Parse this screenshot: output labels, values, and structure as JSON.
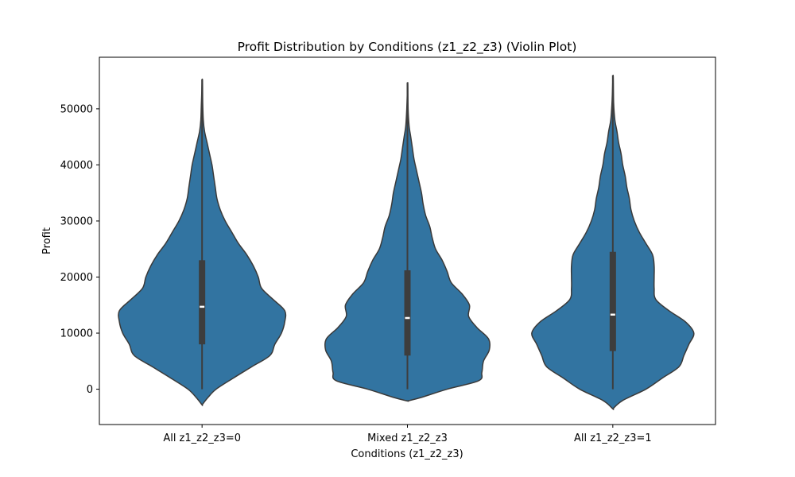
{
  "chart_data": {
    "type": "violin",
    "title": "Profit Distribution by Conditions (z1_z2_z3) (Violin Plot)",
    "xlabel": "Conditions (z1_z2_z3)",
    "ylabel": "Profit",
    "ylim": [
      -6300,
      59200
    ],
    "yticks": [
      0,
      10000,
      20000,
      30000,
      40000,
      50000
    ],
    "grid": false,
    "colors": {
      "violin_fill": "#3274a1",
      "violin_edge": "#3a3a3a",
      "box": "#3d3d3d",
      "median": "#ffffff"
    },
    "categories": [
      "All z1_z2_z3=0",
      "Mixed z1_z2_z3",
      "All z1_z2_z3=1"
    ],
    "violins": [
      {
        "category": "All z1_z2_z3=0",
        "min": 0,
        "q1": 8000,
        "median": 14700,
        "q3": 23000,
        "max": 55300,
        "density_profile": [
          [
            -2800,
            0
          ],
          [
            -1500,
            0.07
          ],
          [
            0,
            0.17
          ],
          [
            2000,
            0.38
          ],
          [
            4000,
            0.6
          ],
          [
            6000,
            0.82
          ],
          [
            8000,
            0.88
          ],
          [
            10000,
            0.96
          ],
          [
            12000,
            1.0
          ],
          [
            14000,
            1.0
          ],
          [
            16000,
            0.86
          ],
          [
            18000,
            0.72
          ],
          [
            20000,
            0.68
          ],
          [
            22000,
            0.62
          ],
          [
            24000,
            0.54
          ],
          [
            26000,
            0.44
          ],
          [
            28000,
            0.36
          ],
          [
            30000,
            0.28
          ],
          [
            32000,
            0.22
          ],
          [
            34000,
            0.18
          ],
          [
            36000,
            0.16
          ],
          [
            38000,
            0.14
          ],
          [
            40000,
            0.12
          ],
          [
            42000,
            0.09
          ],
          [
            44000,
            0.06
          ],
          [
            46000,
            0.03
          ],
          [
            48000,
            0.015
          ],
          [
            51000,
            0.008
          ],
          [
            55300,
            0.004
          ]
        ]
      },
      {
        "category": "Mixed z1_z2_z3",
        "min": 0,
        "q1": 6000,
        "median": 12700,
        "q3": 21200,
        "max": 54700,
        "density_profile": [
          [
            -2100,
            0
          ],
          [
            -1500,
            0.16
          ],
          [
            0,
            0.48
          ],
          [
            1500,
            0.86
          ],
          [
            3000,
            0.9
          ],
          [
            5000,
            0.92
          ],
          [
            7000,
            0.99
          ],
          [
            9000,
            0.98
          ],
          [
            11000,
            0.84
          ],
          [
            13000,
            0.74
          ],
          [
            15000,
            0.75
          ],
          [
            17000,
            0.66
          ],
          [
            19000,
            0.53
          ],
          [
            21000,
            0.48
          ],
          [
            23000,
            0.42
          ],
          [
            25000,
            0.34
          ],
          [
            27000,
            0.3
          ],
          [
            29000,
            0.27
          ],
          [
            31000,
            0.22
          ],
          [
            33000,
            0.19
          ],
          [
            35000,
            0.17
          ],
          [
            37000,
            0.14
          ],
          [
            39000,
            0.11
          ],
          [
            41000,
            0.08
          ],
          [
            43000,
            0.06
          ],
          [
            45000,
            0.04
          ],
          [
            47000,
            0.02
          ],
          [
            50000,
            0.008
          ],
          [
            54700,
            0.004
          ]
        ]
      },
      {
        "category": "All z1_z2_z3=1",
        "min": 0,
        "q1": 6800,
        "median": 13300,
        "q3": 24500,
        "max": 56000,
        "density_profile": [
          [
            -3500,
            0
          ],
          [
            -2000,
            0.12
          ],
          [
            0,
            0.4
          ],
          [
            2000,
            0.6
          ],
          [
            4000,
            0.8
          ],
          [
            6000,
            0.86
          ],
          [
            8000,
            0.92
          ],
          [
            10000,
            0.98
          ],
          [
            12000,
            0.88
          ],
          [
            14000,
            0.68
          ],
          [
            16000,
            0.52
          ],
          [
            18000,
            0.5
          ],
          [
            20000,
            0.5
          ],
          [
            22000,
            0.5
          ],
          [
            24000,
            0.48
          ],
          [
            26000,
            0.4
          ],
          [
            28000,
            0.32
          ],
          [
            30000,
            0.26
          ],
          [
            32000,
            0.22
          ],
          [
            34000,
            0.2
          ],
          [
            36000,
            0.17
          ],
          [
            38000,
            0.15
          ],
          [
            40000,
            0.12
          ],
          [
            42000,
            0.1
          ],
          [
            44000,
            0.07
          ],
          [
            46000,
            0.05
          ],
          [
            48000,
            0.025
          ],
          [
            51000,
            0.01
          ],
          [
            56000,
            0.004
          ]
        ]
      }
    ]
  }
}
